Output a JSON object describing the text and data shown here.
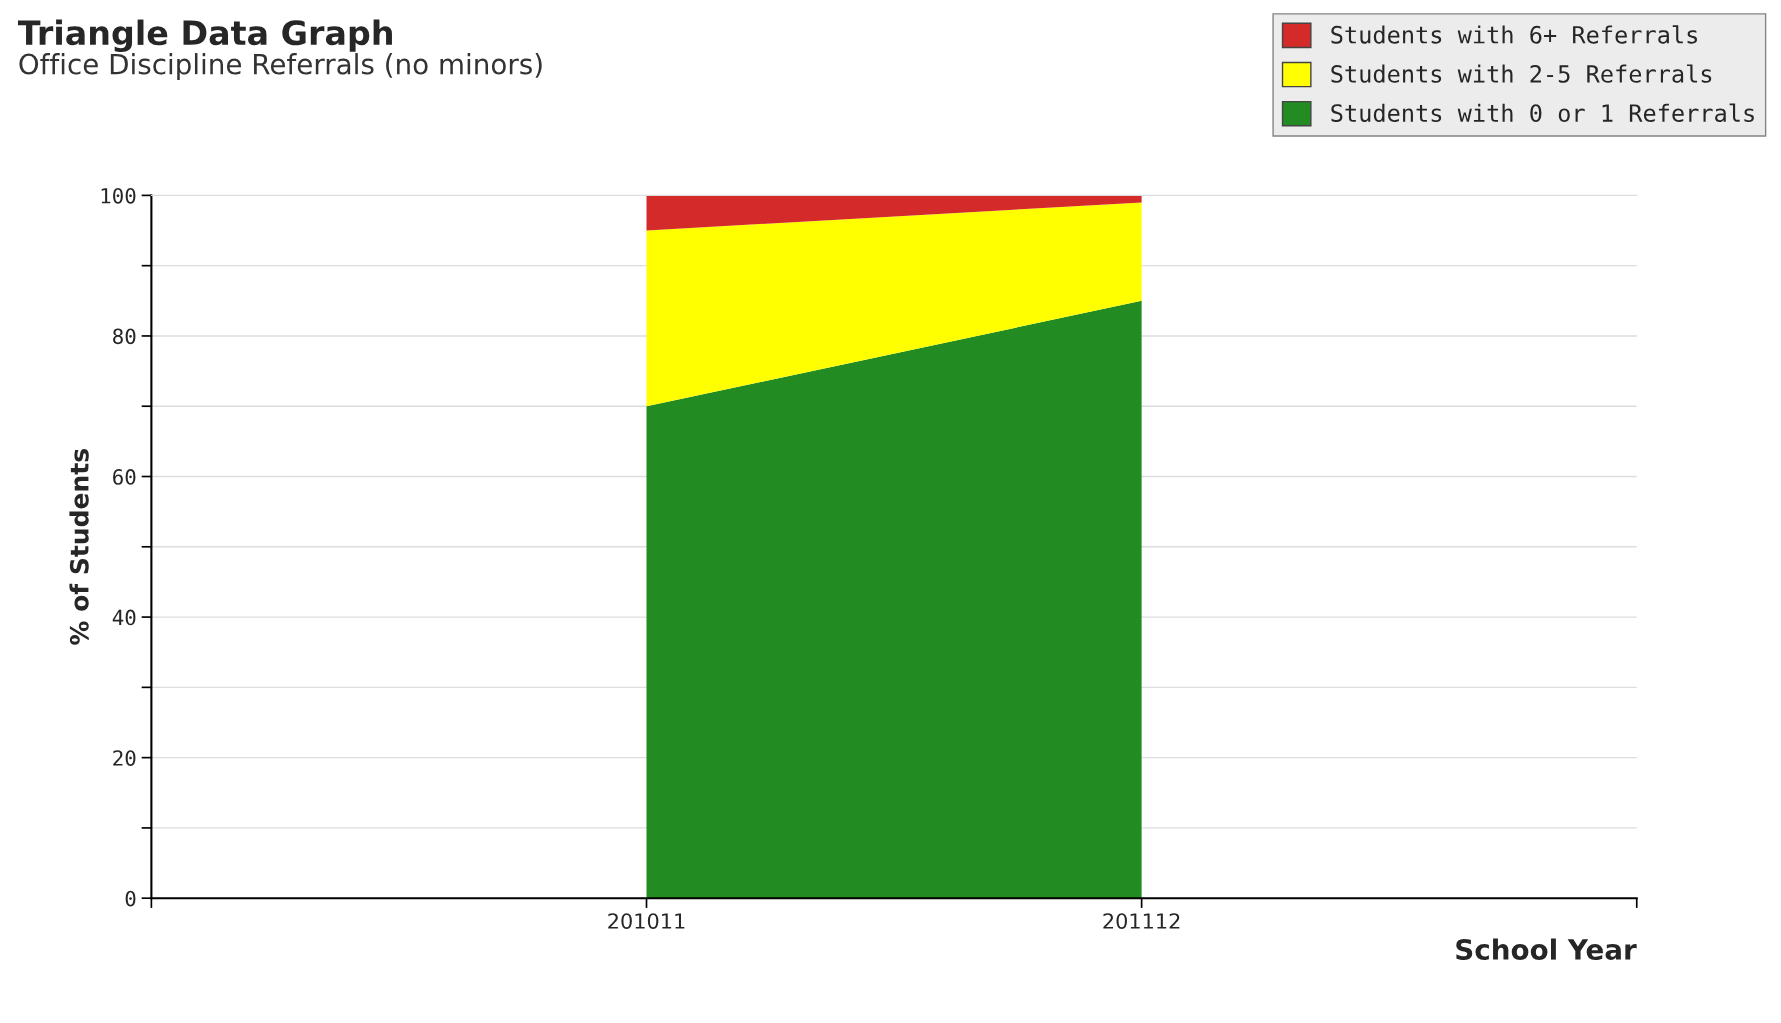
{
  "chart_data": {
    "type": "area",
    "title": "Triangle Data Graph",
    "subtitle": "Office Discipline Referrals (no minors)",
    "xlabel": "School Year",
    "ylabel": "% of Students",
    "categories": [
      null,
      "201011",
      "201112",
      null
    ],
    "stacked": true,
    "series": [
      {
        "name": "Students with 0 or 1 Referrals",
        "color": "#228b22",
        "values": [
          null,
          70,
          85,
          null
        ]
      },
      {
        "name": "Students with 2-5 Referrals",
        "color": "#ffff00",
        "values": [
          null,
          25,
          14,
          null
        ]
      },
      {
        "name": "Students with 6+ Referrals",
        "color": "#d42a2a",
        "values": [
          null,
          5,
          1,
          null
        ]
      }
    ],
    "ylim": [
      0,
      100
    ],
    "yticks": [
      0,
      {
        "value": 10,
        "label": null
      },
      20,
      {
        "value": 30,
        "label": null
      },
      40,
      {
        "value": 50,
        "label": null
      },
      60,
      {
        "value": 70,
        "label": null
      },
      80,
      {
        "value": 90,
        "label": null
      },
      100
    ],
    "grid": "y",
    "legend": "top right"
  }
}
